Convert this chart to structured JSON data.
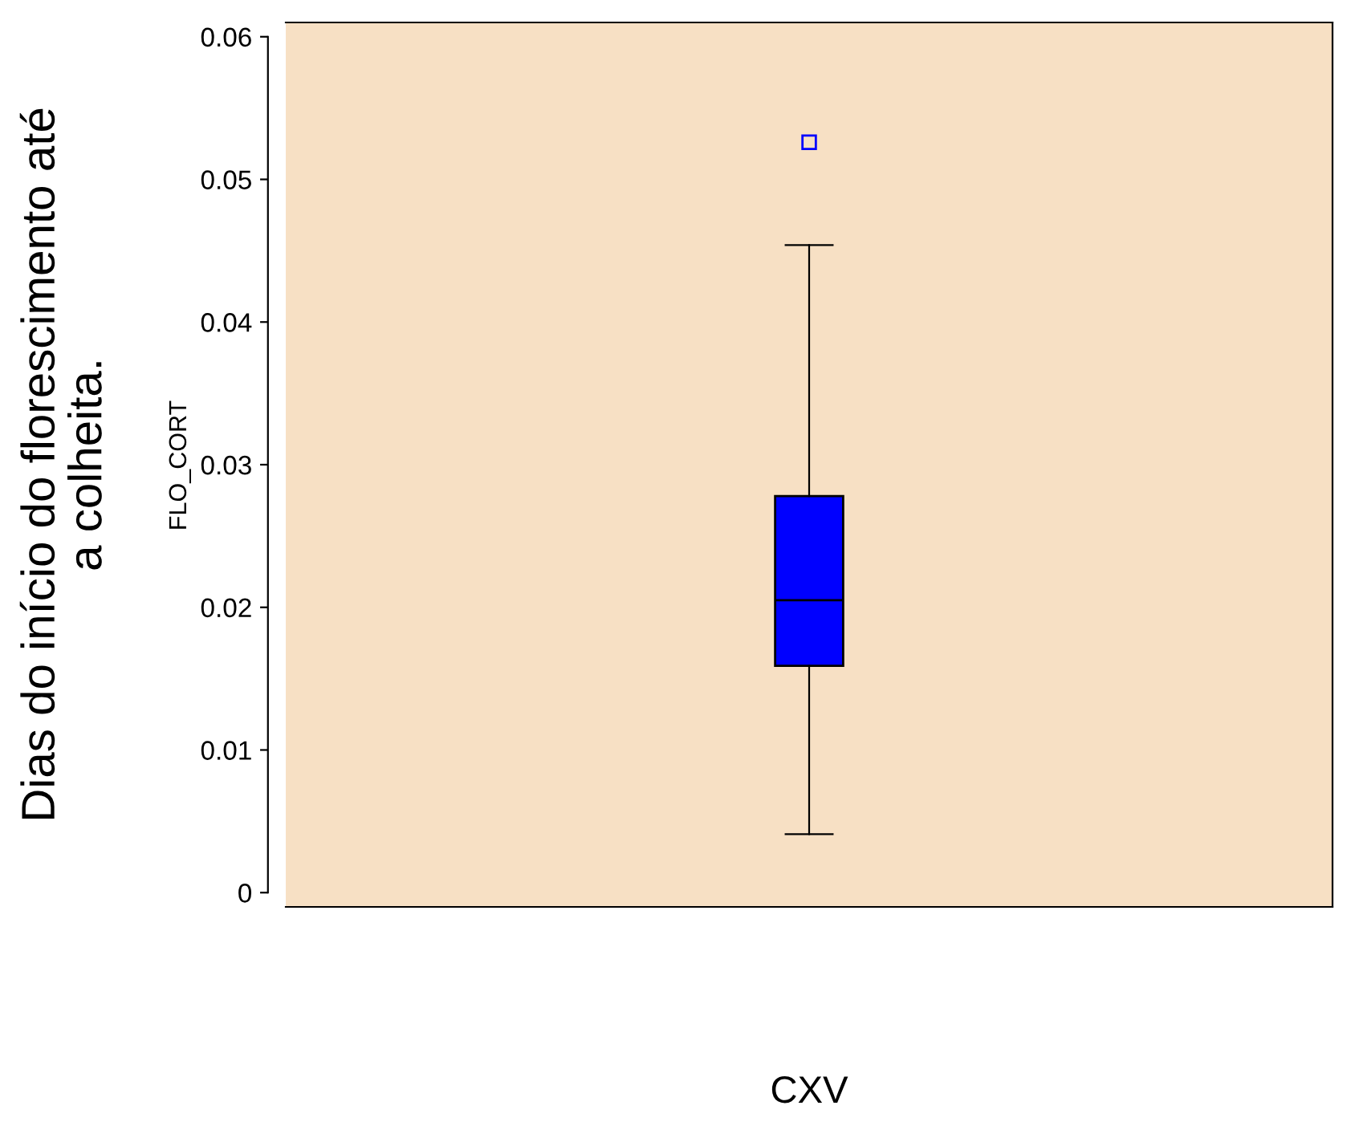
{
  "chart_data": {
    "type": "box",
    "categories": [
      null
    ],
    "xlabel": "CXV",
    "ylabel": "Dias do início do florescimento até\na colheita.",
    "annotations": [
      "FLO_CORT"
    ],
    "boxes": [
      {
        "low": 0.0041,
        "q1": 0.0159,
        "median": 0.0205,
        "q3": 0.0278,
        "high": 0.0454,
        "outliers": [
          0.0526
        ]
      }
    ],
    "color": "#0000ff",
    "ylim": [
      -0.001,
      0.061
    ],
    "yticks": [
      0,
      0.01,
      0.02,
      0.03,
      0.04,
      0.05,
      0.06
    ],
    "grid": false,
    "legend": false
  }
}
